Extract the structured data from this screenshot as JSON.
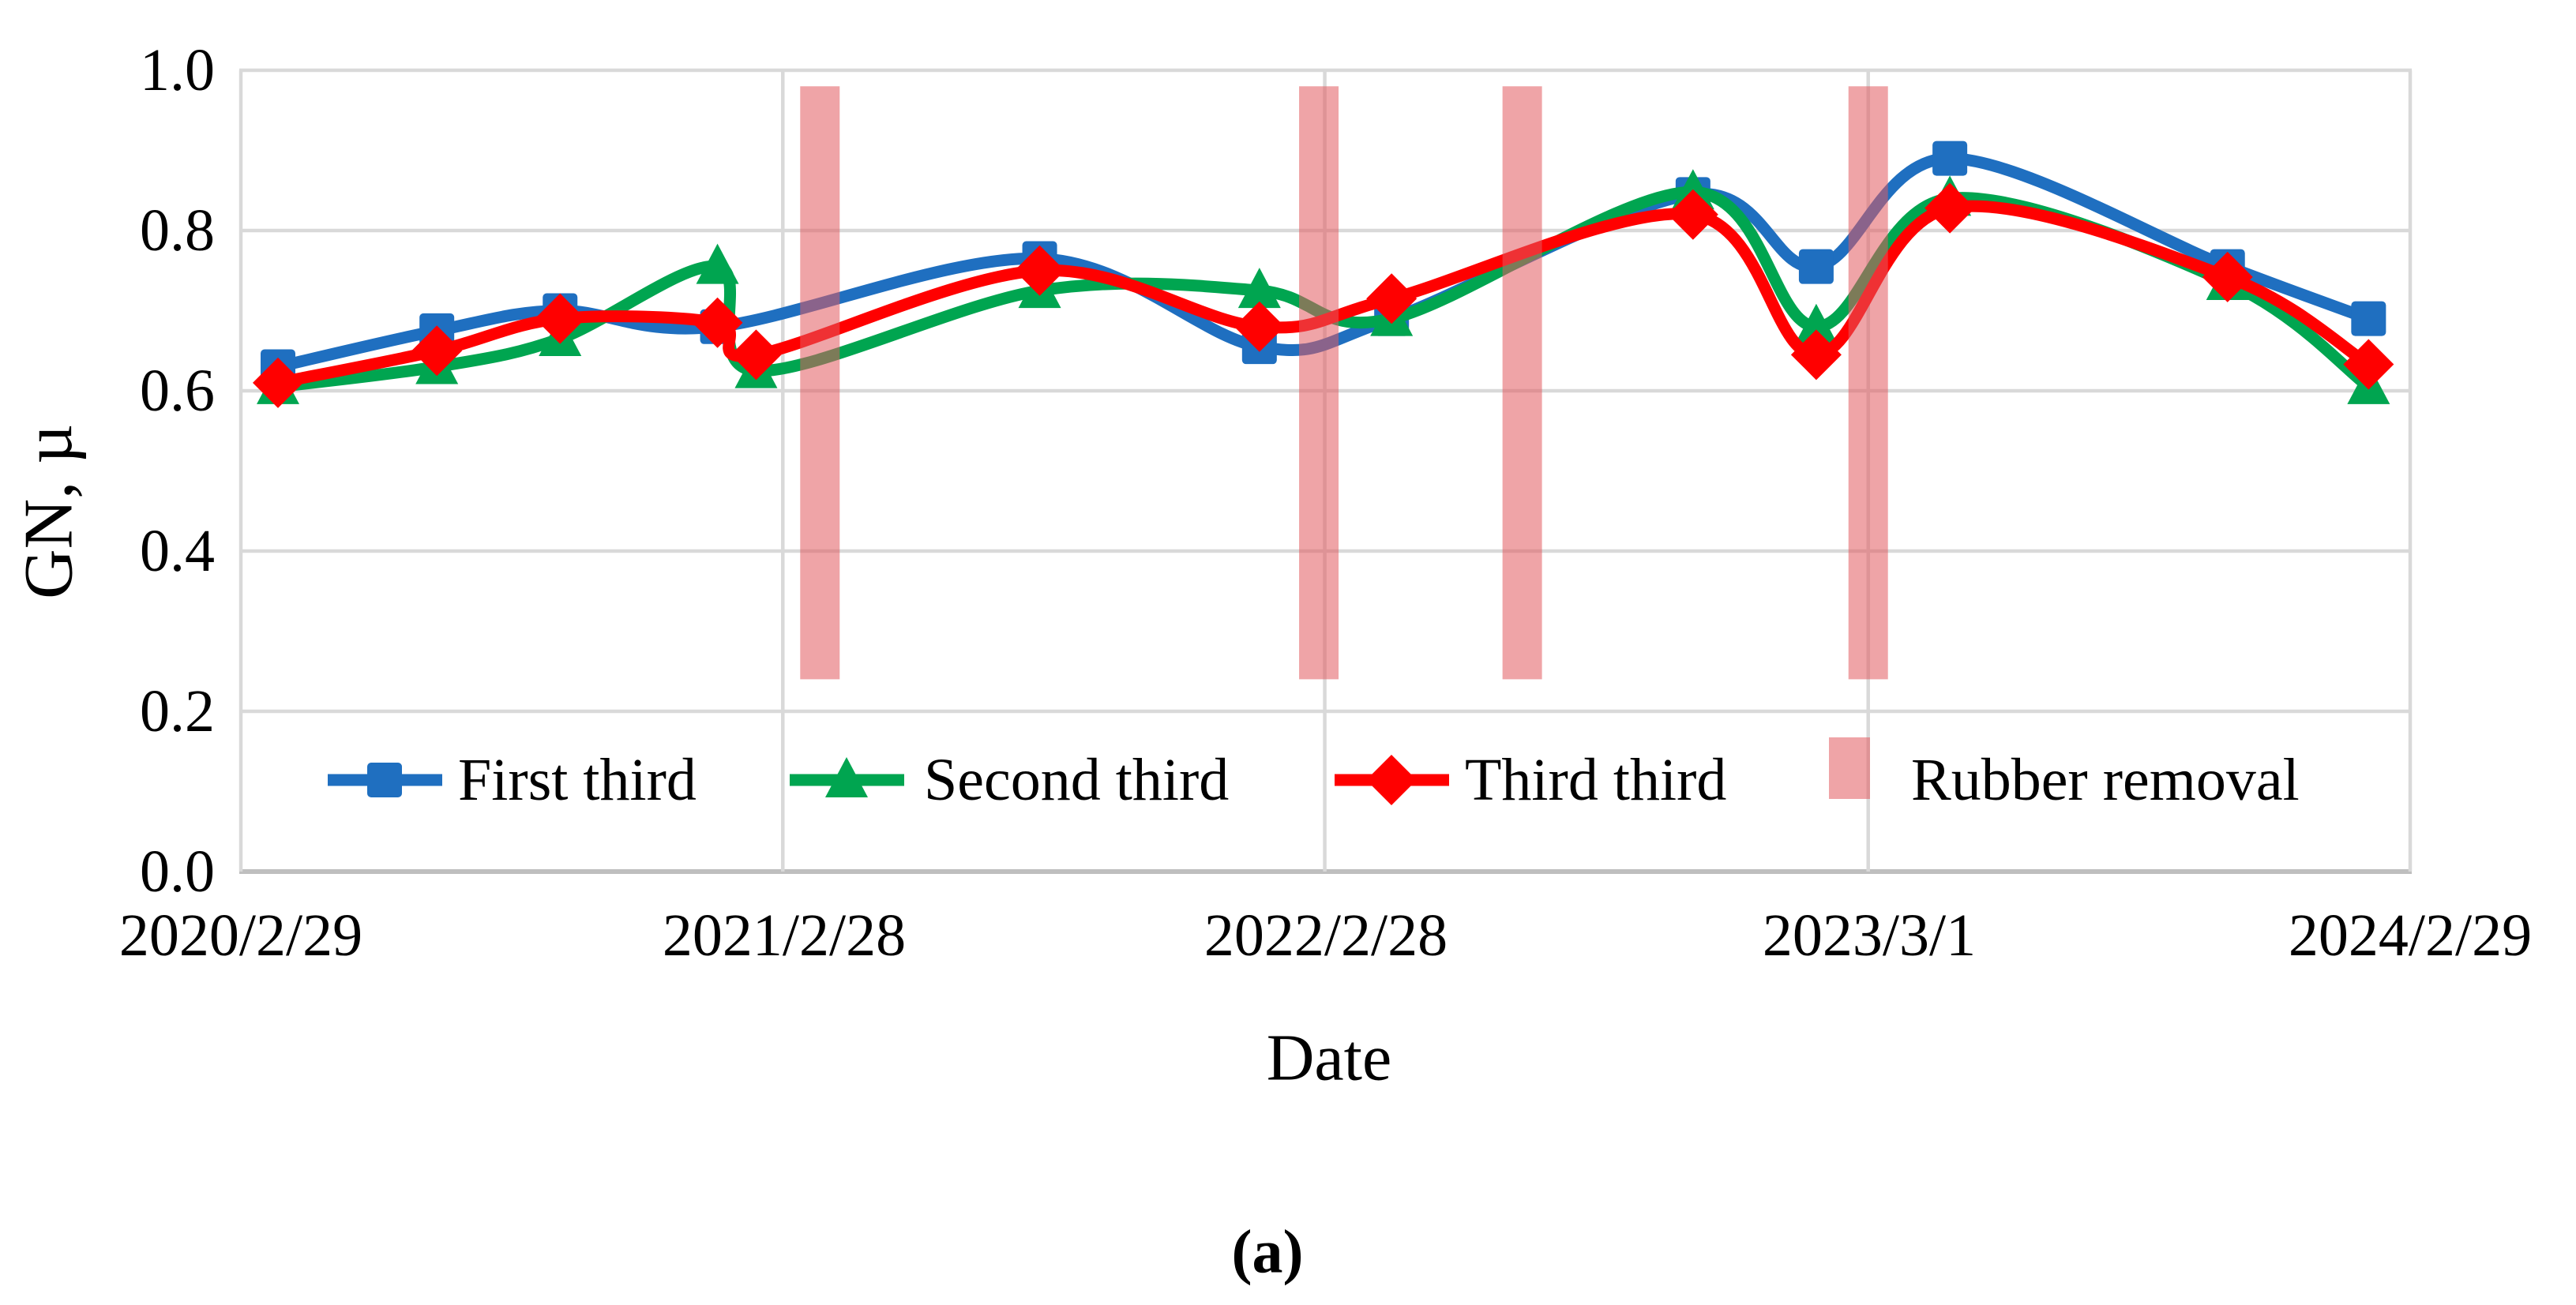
{
  "chart_data": {
    "type": "line",
    "title": "",
    "xlabel": "Date",
    "ylabel": "GN, µ",
    "caption": "(a)",
    "ylim": [
      0.0,
      1.0
    ],
    "y_tick_labels": [
      "0.0",
      "0.2",
      "0.4",
      "0.6",
      "0.8",
      "1.0"
    ],
    "x_tick_labels": [
      "2020/2/29",
      "2021/2/28",
      "2022/2/28",
      "2023/3/1",
      "2024/2/29"
    ],
    "grid": "on",
    "legend_position": "bottom-inside",
    "colors": {
      "first_third": "#1f6fc0",
      "second_third": "#00a550",
      "third_third": "#ff0000",
      "rubber_removal": "#e25a5e",
      "gridline": "#d9d9d9",
      "axis_line": "#bfbfbf"
    },
    "series": [
      {
        "name": "First third",
        "marker": "square",
        "color": "#1f6fc0",
        "points": [
          {
            "date": "2020/3/25",
            "value": 0.63
          },
          {
            "date": "2020/7/10",
            "value": 0.675
          },
          {
            "date": "2020/10/1",
            "value": 0.7
          },
          {
            "date": "2021/1/15",
            "value": 0.68
          },
          {
            "date": "2021/8/20",
            "value": 0.765
          },
          {
            "date": "2022/1/15",
            "value": 0.655
          },
          {
            "date": "2022/4/14",
            "value": 0.69
          },
          {
            "date": "2022/11/3",
            "value": 0.845
          },
          {
            "date": "2023/1/25",
            "value": 0.755
          },
          {
            "date": "2023/4/25",
            "value": 0.89
          },
          {
            "date": "2023/10/29",
            "value": 0.755
          },
          {
            "date": "2024/2/1",
            "value": 0.69
          }
        ]
      },
      {
        "name": "Second third",
        "marker": "triangle",
        "color": "#00a550",
        "points": [
          {
            "date": "2020/3/25",
            "value": 0.605
          },
          {
            "date": "2020/7/10",
            "value": 0.63
          },
          {
            "date": "2020/10/1",
            "value": 0.665
          },
          {
            "date": "2021/1/15",
            "value": 0.755
          },
          {
            "date": "2021/2/10",
            "value": 0.625
          },
          {
            "date": "2021/8/20",
            "value": 0.725
          },
          {
            "date": "2022/1/15",
            "value": 0.725
          },
          {
            "date": "2022/4/14",
            "value": 0.69
          },
          {
            "date": "2022/11/3",
            "value": 0.848
          },
          {
            "date": "2023/1/25",
            "value": 0.68
          },
          {
            "date": "2023/4/25",
            "value": 0.84
          },
          {
            "date": "2023/10/29",
            "value": 0.735
          },
          {
            "date": "2024/2/1",
            "value": 0.605
          }
        ]
      },
      {
        "name": "Third third",
        "marker": "diamond",
        "color": "#ff0000",
        "points": [
          {
            "date": "2020/3/25",
            "value": 0.61
          },
          {
            "date": "2020/7/10",
            "value": 0.65
          },
          {
            "date": "2020/10/1",
            "value": 0.69
          },
          {
            "date": "2021/1/15",
            "value": 0.685
          },
          {
            "date": "2021/2/10",
            "value": 0.645
          },
          {
            "date": "2021/8/20",
            "value": 0.75
          },
          {
            "date": "2022/1/15",
            "value": 0.68
          },
          {
            "date": "2022/4/14",
            "value": 0.715
          },
          {
            "date": "2022/11/3",
            "value": 0.82
          },
          {
            "date": "2023/1/25",
            "value": 0.645
          },
          {
            "date": "2023/4/25",
            "value": 0.828
          },
          {
            "date": "2023/10/29",
            "value": 0.742
          },
          {
            "date": "2024/2/1",
            "value": 0.633
          }
        ]
      }
    ],
    "rubber_removal": {
      "label": "Rubber removal",
      "color": "#e25a5e",
      "opacity": 0.55,
      "dates": [
        "2021/3/25",
        "2022/2/24",
        "2022/7/11",
        "2023/3/1"
      ],
      "value_span": [
        0.24,
        0.98
      ]
    }
  }
}
